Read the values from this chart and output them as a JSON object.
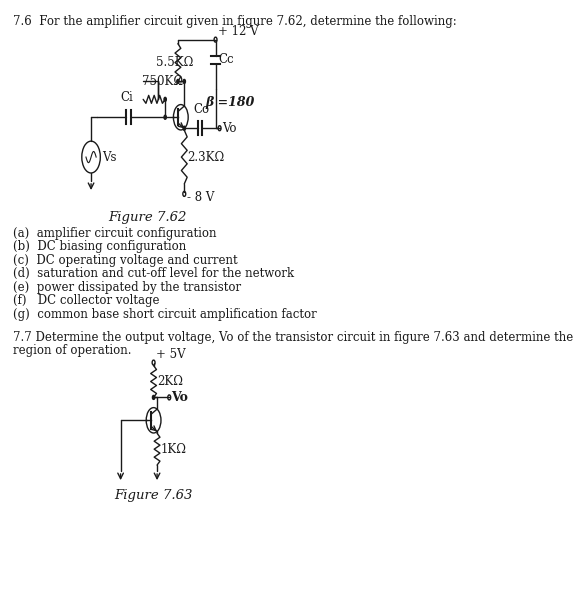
{
  "title_text": "7.6  For the amplifier circuit given in figure 7.62, determine the following:",
  "figure_label_1": "Figure 7.62",
  "figure_label_2": "Figure 7.63",
  "list_items": [
    "(a)  amplifier circuit configuration",
    "(b)  DC biasing configuration",
    "(c)  DC operating voltage and current",
    "(d)  saturation and cut-off level for the network",
    "(e)  power dissipated by the transistor",
    "(f)   DC collector voltage",
    "(g)  common base short circuit amplification factor"
  ],
  "problem_77_line1": "7.7 Determine the output voltage, Vo of the transistor circuit in figure 7.63 and determine the",
  "problem_77_line2": "region of operation.",
  "bg_color": "#ffffff",
  "text_color": "#000000",
  "font_size": 8.5,
  "circuit1": {
    "vcc": "+ 12 V",
    "r1_label": "5.5KΩ",
    "r2_label": "750KΩ",
    "rc_label": "2.3KΩ",
    "beta": "β =180",
    "ci_label": "Ci",
    "co_label": "Co",
    "vs_label": "Vs",
    "vo_label": "Vo",
    "cc_label": "Cc",
    "vee": "- 8 V"
  },
  "circuit2": {
    "vcc": "+ 5V",
    "r1_label": "2KΩ",
    "r2_label": "1KΩ",
    "vo_label": "Vo"
  }
}
